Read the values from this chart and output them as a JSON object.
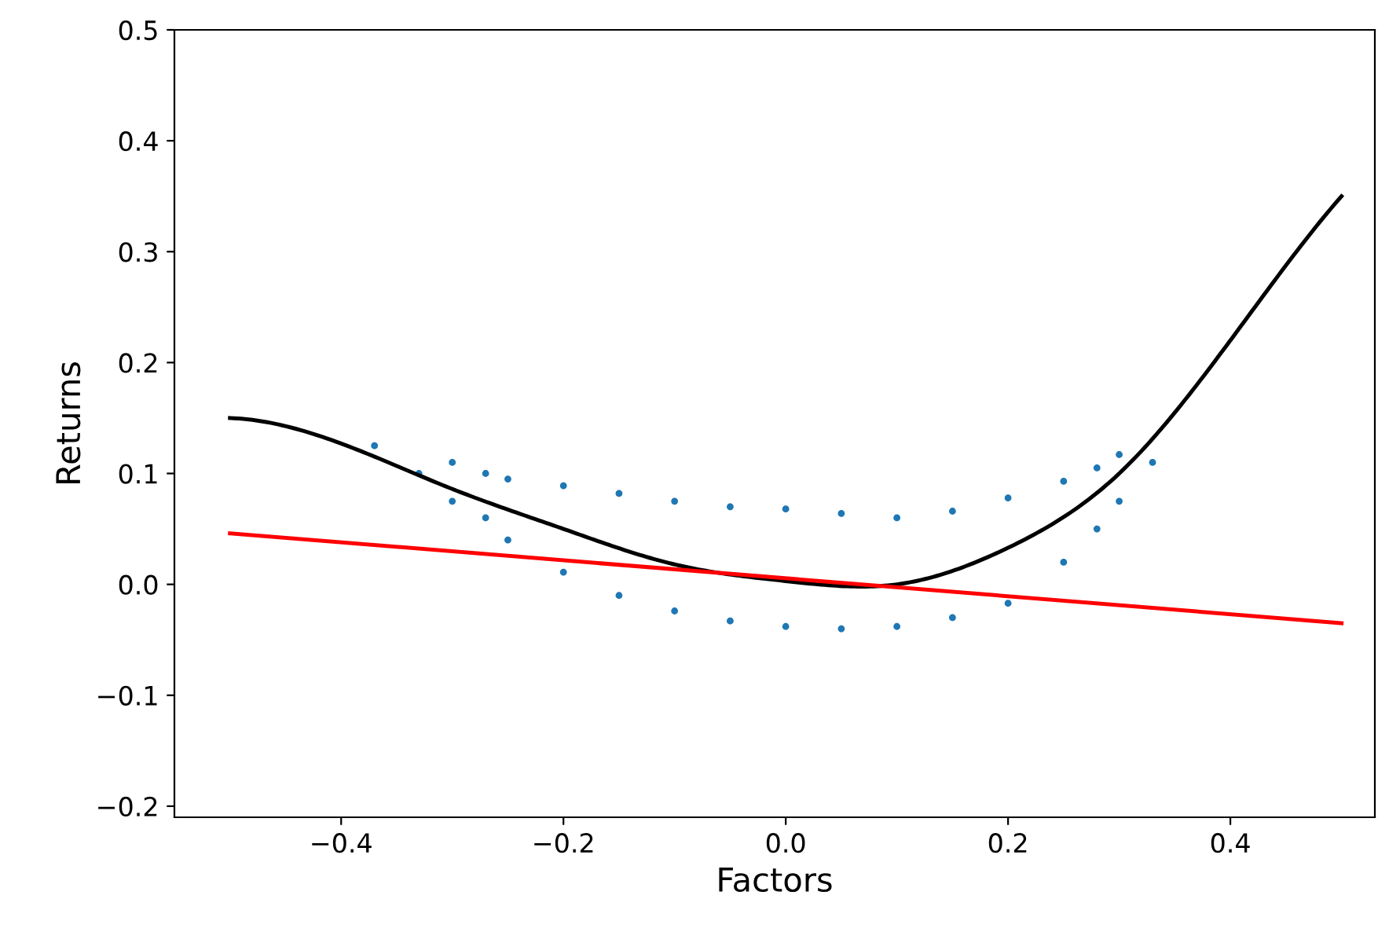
{
  "chart_data": {
    "type": "scatter",
    "xlabel": "Factors",
    "ylabel": "Returns",
    "xlim": [
      -0.55,
      0.53
    ],
    "ylim": [
      -0.21,
      0.5
    ],
    "xticks": [
      {
        "value": -0.4,
        "label": "−0.4"
      },
      {
        "value": -0.2,
        "label": "−0.2"
      },
      {
        "value": 0.0,
        "label": "0.0"
      },
      {
        "value": 0.2,
        "label": "0.2"
      },
      {
        "value": 0.4,
        "label": "0.4"
      }
    ],
    "yticks": [
      {
        "value": -0.2,
        "label": "−0.2"
      },
      {
        "value": -0.1,
        "label": "−0.1"
      },
      {
        "value": 0.0,
        "label": "0.0"
      },
      {
        "value": 0.1,
        "label": "0.1"
      },
      {
        "value": 0.2,
        "label": "0.2"
      },
      {
        "value": 0.3,
        "label": "0.3"
      },
      {
        "value": 0.4,
        "label": "0.4"
      },
      {
        "value": 0.5,
        "label": "0.5"
      }
    ],
    "grid": false,
    "legend": false,
    "series": [
      {
        "color": "#1f77b4",
        "x": [
          -0.37,
          -0.33,
          -0.3,
          -0.3,
          -0.27,
          -0.27,
          -0.25,
          -0.25,
          -0.2,
          -0.2,
          -0.15,
          -0.15,
          -0.1,
          -0.1,
          -0.05,
          -0.05,
          0.0,
          0.0,
          0.05,
          0.05,
          0.1,
          0.1,
          0.15,
          0.15,
          0.2,
          0.2,
          0.25,
          0.25,
          0.28,
          0.28,
          0.3,
          0.3,
          0.33
        ],
        "values": [
          0.125,
          0.1,
          0.11,
          0.075,
          0.1,
          0.06,
          0.095,
          0.04,
          0.089,
          0.011,
          0.082,
          -0.01,
          0.075,
          -0.024,
          0.07,
          -0.033,
          0.068,
          -0.038,
          0.064,
          -0.04,
          0.06,
          -0.038,
          0.066,
          -0.03,
          0.078,
          -0.017,
          0.093,
          0.02,
          0.105,
          0.05,
          0.117,
          0.075,
          0.11
        ]
      },
      {
        "type": "line",
        "color": "#000000",
        "x": [
          -0.5,
          -0.4,
          -0.3,
          -0.2,
          -0.1,
          0.0,
          0.1,
          0.2,
          0.3,
          0.4,
          0.5
        ],
        "values": [
          0.15,
          0.127,
          0.086,
          0.05,
          0.018,
          0.003,
          0.0,
          0.033,
          0.1,
          0.22,
          0.35
        ]
      },
      {
        "type": "line",
        "color": "#ff0000",
        "x": [
          -0.5,
          0.5
        ],
        "values": [
          0.046,
          -0.035
        ]
      }
    ]
  }
}
